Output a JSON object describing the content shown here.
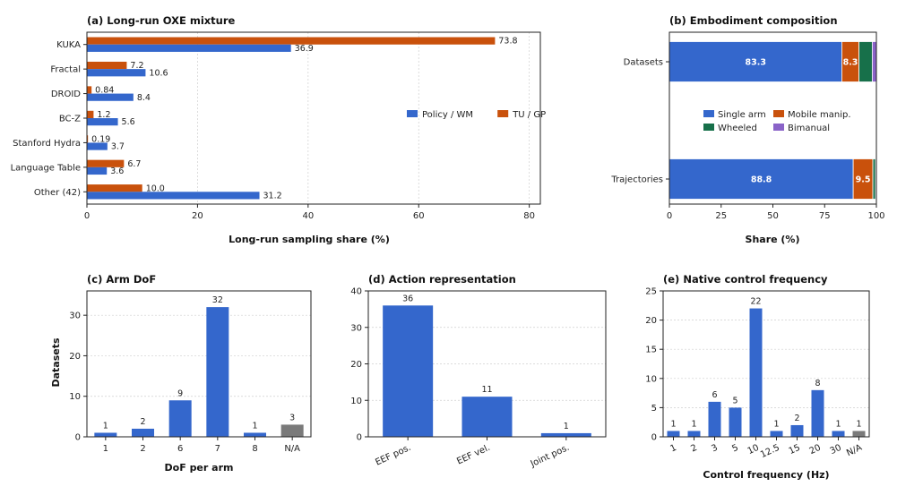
{
  "colors": {
    "blue": "#3467CC",
    "orange": "#C9510C",
    "green": "#17704A",
    "purple": "#8A63C8",
    "gray": "#7A7A7A"
  },
  "chart_data": [
    {
      "id": "a",
      "type": "bar",
      "orientation": "horizontal",
      "title": "(a) Long-run OXE mixture",
      "xlabel": "Long-run sampling share (%)",
      "ylabel": "",
      "xlim": [
        0,
        82
      ],
      "xticks": [
        "0",
        "20",
        "40",
        "60",
        "80"
      ],
      "categories": [
        "KUKA",
        "Fractal",
        "DROID",
        "BC-Z",
        "Stanford Hydra",
        "Language Table",
        "Other (42)"
      ],
      "series": [
        {
          "name": "TU / GP",
          "color": "orange",
          "values": [
            73.8,
            7.2,
            0.84,
            1.2,
            0.19,
            6.7,
            10.0
          ],
          "labels": [
            "73.8",
            "7.2",
            "0.84",
            "1.2",
            "0.19",
            "6.7",
            "10.0"
          ]
        },
        {
          "name": "Policy / WM",
          "color": "blue",
          "values": [
            36.9,
            10.6,
            8.4,
            5.6,
            3.7,
            3.6,
            31.2
          ],
          "labels": [
            "36.9",
            "10.6",
            "8.4",
            "5.6",
            "3.7",
            "3.6",
            "31.2"
          ]
        }
      ],
      "legend": {
        "position": "center-right",
        "order": [
          "Policy / WM",
          "TU / GP"
        ]
      },
      "grid": "x"
    },
    {
      "id": "b",
      "type": "bar",
      "orientation": "horizontal-stacked",
      "title": "(b) Embodiment composition",
      "xlabel": "Share (%)",
      "ylabel": "",
      "xlim": [
        0,
        100
      ],
      "xticks": [
        "0",
        "25",
        "50",
        "75",
        "100"
      ],
      "categories": [
        "Datasets",
        "Trajectories"
      ],
      "series": [
        {
          "name": "Single arm",
          "color": "blue",
          "values": [
            83.3,
            88.8
          ],
          "labels": [
            "83.3",
            "88.8"
          ]
        },
        {
          "name": "Mobile manip.",
          "color": "orange",
          "values": [
            8.3,
            9.5
          ],
          "labels": [
            "8.3",
            "9.5"
          ]
        },
        {
          "name": "Wheeled",
          "color": "green",
          "values": [
            6.4,
            1.3
          ],
          "labels": [
            "",
            ""
          ]
        },
        {
          "name": "Bimanual",
          "color": "purple",
          "values": [
            2.0,
            0.4
          ],
          "labels": [
            "",
            ""
          ]
        }
      ],
      "legend": {
        "position": "center",
        "columns": 2
      }
    },
    {
      "id": "c",
      "type": "bar",
      "title": "(c) Arm DoF",
      "xlabel": "DoF per arm",
      "ylabel": "Datasets",
      "ylim": [
        0,
        36
      ],
      "yticks": [
        "0",
        "10",
        "20",
        "30"
      ],
      "categories": [
        "1",
        "2",
        "6",
        "7",
        "8",
        "N/A"
      ],
      "values": [
        1,
        2,
        9,
        32,
        1,
        3
      ],
      "colors": [
        "blue",
        "blue",
        "blue",
        "blue",
        "blue",
        "gray"
      ],
      "grid": "y"
    },
    {
      "id": "d",
      "type": "bar",
      "title": "(d) Action representation",
      "xlabel": "",
      "ylabel": "",
      "ylim": [
        0,
        40
      ],
      "yticks": [
        "0",
        "10",
        "20",
        "30",
        "40"
      ],
      "categories": [
        "EEF pos.",
        "EEF vel.",
        "Joint pos."
      ],
      "values": [
        36,
        11,
        1
      ],
      "colors": [
        "blue",
        "blue",
        "blue"
      ],
      "grid": "y"
    },
    {
      "id": "e",
      "type": "bar",
      "title": "(e) Native control frequency",
      "xlabel": "Control frequency (Hz)",
      "ylabel": "",
      "ylim": [
        0,
        25
      ],
      "yticks": [
        "0",
        "5",
        "10",
        "15",
        "20",
        "25"
      ],
      "categories": [
        "1",
        "2",
        "3",
        "5",
        "10",
        "12.5",
        "15",
        "20",
        "30",
        "N/A"
      ],
      "values": [
        1,
        1,
        6,
        5,
        22,
        1,
        2,
        8,
        1,
        1
      ],
      "colors": [
        "blue",
        "blue",
        "blue",
        "blue",
        "blue",
        "blue",
        "blue",
        "blue",
        "blue",
        "gray"
      ],
      "grid": "y"
    }
  ]
}
